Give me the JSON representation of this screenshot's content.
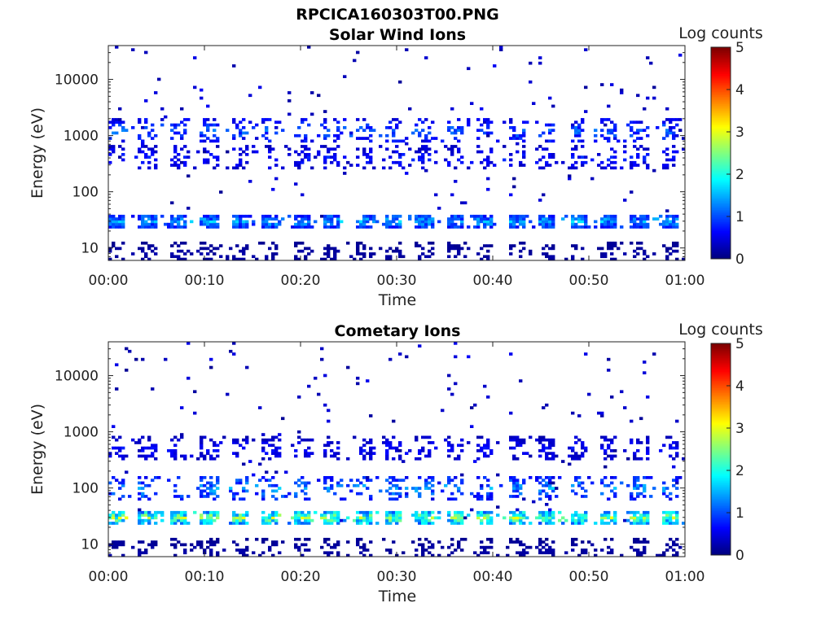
{
  "figure": {
    "filename": "RPCICA160303T00.PNG"
  },
  "chart_data": [
    {
      "type": "heatmap",
      "title": "Solar Wind Ions",
      "xlabel": "Time",
      "ylabel": "Energy (eV)",
      "x_ticks": [
        "00:00",
        "00:10",
        "00:20",
        "00:30",
        "00:40",
        "00:50",
        "01:00"
      ],
      "x_range_minutes": [
        0,
        60
      ],
      "y_scale": "log",
      "y_ticks": [
        10,
        100,
        1000,
        10000
      ],
      "y_tick_labels": [
        "10",
        "100",
        "1000",
        "10000"
      ],
      "y_range_eV": [
        6,
        40000
      ],
      "colorbar": {
        "label": "Log counts",
        "range": [
          0,
          5
        ],
        "ticks": [
          "0",
          "1",
          "2",
          "3",
          "4",
          "5"
        ],
        "colormap": "jet"
      },
      "bands": [
        {
          "energy_eV": 30,
          "log_counts": 1.6
        },
        {
          "energy_eV": 1200,
          "log_counts": 1.2
        },
        {
          "energy_eV": 400,
          "log_counts": 0.8
        },
        {
          "energy_eV": 8,
          "log_counts": 0.2
        }
      ],
      "sweep_period_minutes": 3.2
    },
    {
      "type": "heatmap",
      "title": "Cometary Ions",
      "xlabel": "Time",
      "ylabel": "Energy (eV)",
      "x_ticks": [
        "00:00",
        "00:10",
        "00:20",
        "00:30",
        "00:40",
        "00:50",
        "01:00"
      ],
      "x_range_minutes": [
        0,
        60
      ],
      "y_scale": "log",
      "y_ticks": [
        10,
        100,
        1000,
        10000
      ],
      "y_tick_labels": [
        "10",
        "100",
        "1000",
        "10000"
      ],
      "y_range_eV": [
        6,
        40000
      ],
      "colorbar": {
        "label": "Log counts",
        "range": [
          0,
          5
        ],
        "ticks": [
          "0",
          "1",
          "2",
          "3",
          "4",
          "5"
        ],
        "colormap": "jet"
      },
      "bands": [
        {
          "energy_eV": 30,
          "log_counts": 2.8
        },
        {
          "energy_eV": 100,
          "log_counts": 1.5
        },
        {
          "energy_eV": 500,
          "log_counts": 0.7
        },
        {
          "energy_eV": 8,
          "log_counts": 0.2
        }
      ],
      "sweep_period_minutes": 3.2
    }
  ]
}
